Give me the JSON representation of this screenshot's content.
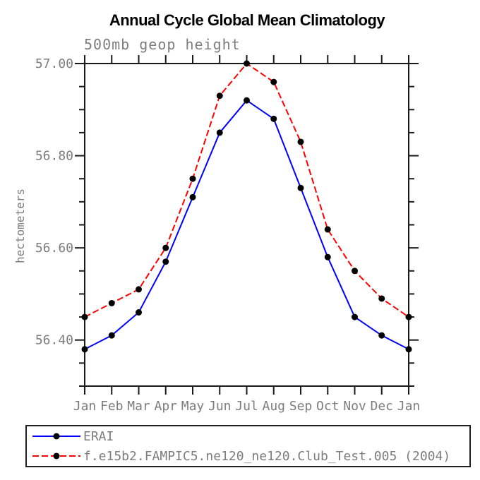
{
  "chart_data": {
    "type": "line",
    "title": "Annual Cycle Global Mean Climatology",
    "subtitle": "500mb geop height",
    "ylabel": "hectometers",
    "categories": [
      "Jan",
      "Feb",
      "Mar",
      "Apr",
      "May",
      "Jun",
      "Jul",
      "Aug",
      "Sep",
      "Oct",
      "Nov",
      "Dec",
      "Jan"
    ],
    "series": [
      {
        "name": "ERAI",
        "color": "#0000ff",
        "line_style": "solid",
        "marker": "filled-circle",
        "marker_color": "#000000",
        "values": [
          56.38,
          56.41,
          56.46,
          56.57,
          56.71,
          56.85,
          56.92,
          56.88,
          56.73,
          56.58,
          56.45,
          56.41,
          56.38
        ]
      },
      {
        "name": "f.e15b2.FAMPIC5.ne120_ne120.Club_Test.005 (2004)",
        "color": "#ff0000",
        "line_style": "dashed",
        "marker": "filled-circle",
        "marker_color": "#000000",
        "values": [
          56.45,
          56.48,
          56.51,
          56.6,
          56.75,
          56.93,
          57.0,
          56.96,
          56.83,
          56.64,
          56.55,
          56.49,
          56.45
        ]
      }
    ],
    "ylim": [
      56.3,
      57.0
    ],
    "yticks": [
      {
        "value": 56.4,
        "label": "56.40"
      },
      {
        "value": 56.6,
        "label": "56.60"
      },
      {
        "value": 56.8,
        "label": "56.80"
      },
      {
        "value": 57.0,
        "label": "57.00"
      }
    ],
    "y_minor_step": 0.05,
    "grid": false,
    "legend_position": "bottom-left-box",
    "axis_color": "#1a1a1a",
    "label_color": "#7d7d7d"
  }
}
